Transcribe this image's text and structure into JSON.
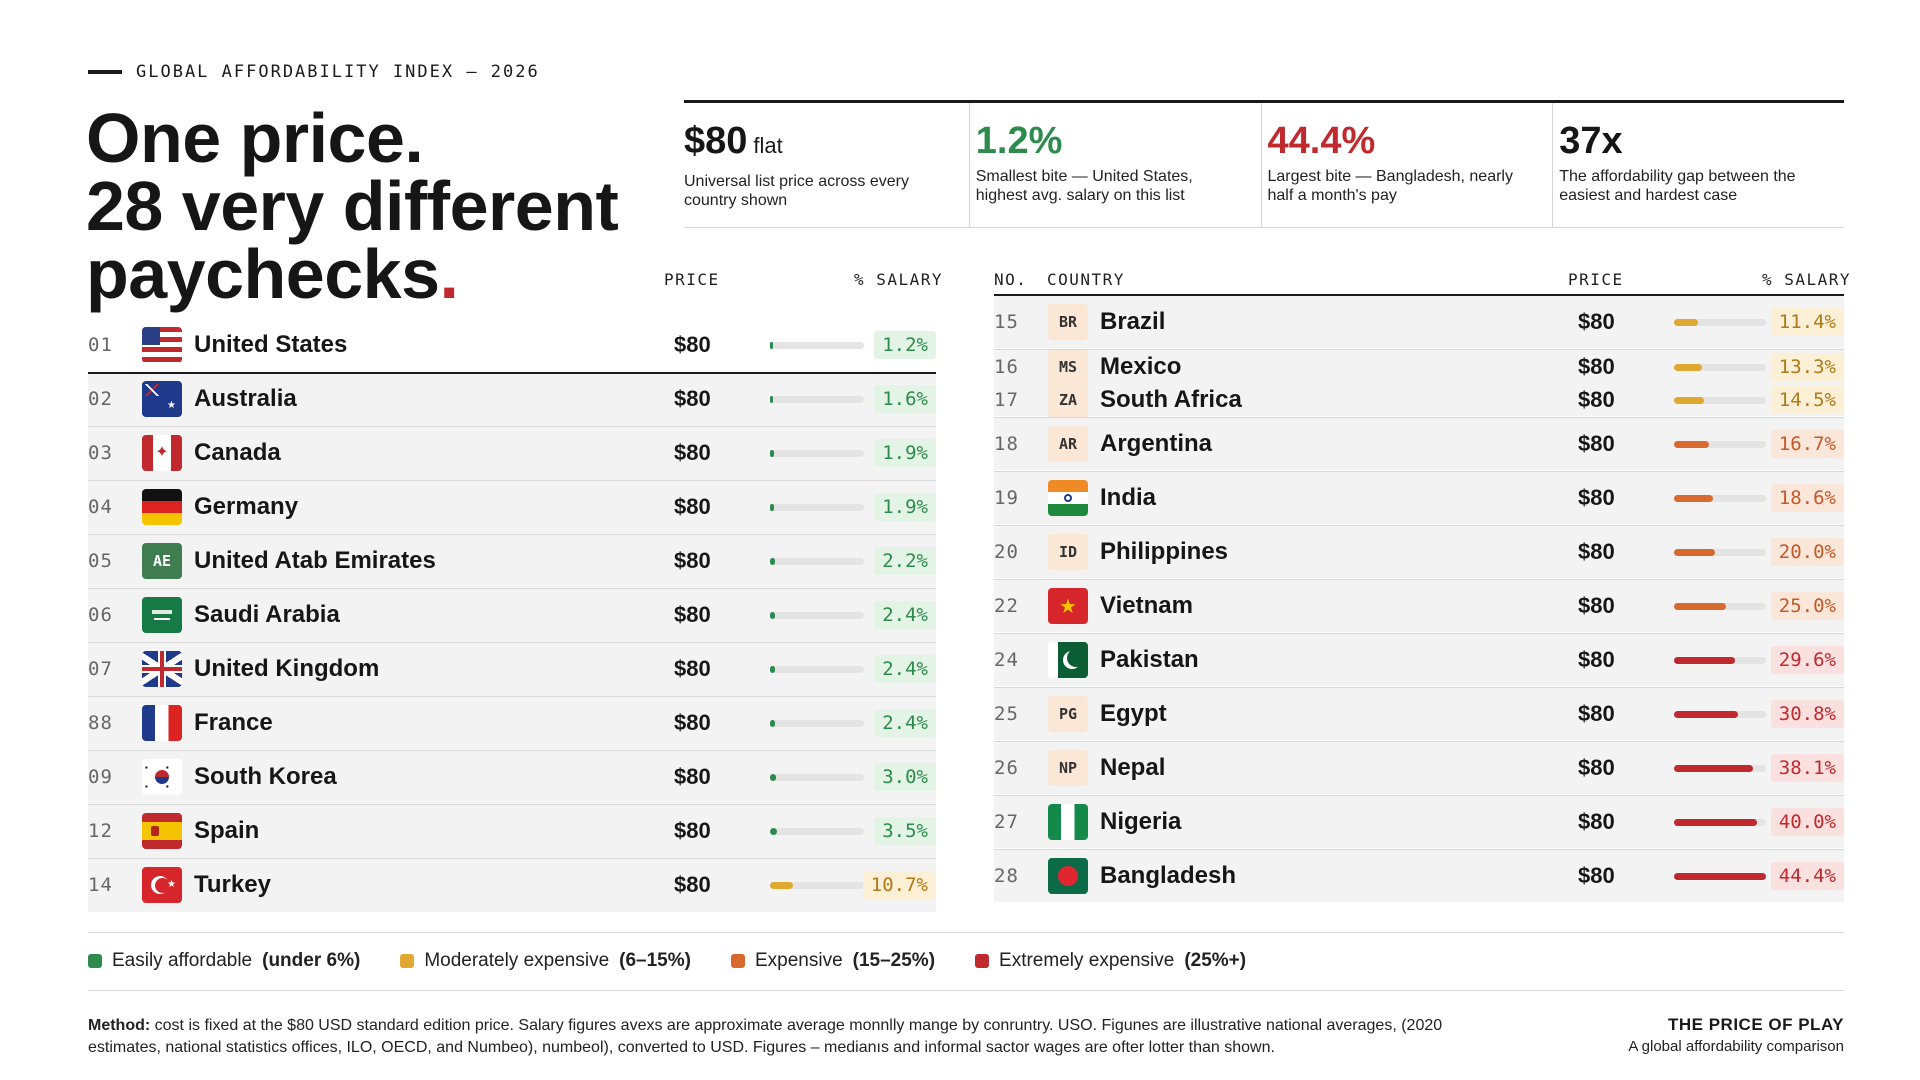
{
  "header": {
    "eyebrow": "GLOBAL AFFORDABILITY INDEX – 2026",
    "headline_line1": "One price.",
    "headline_line2": "28 very different",
    "headline_line3": "paychecks",
    "headline_dot": "."
  },
  "stats": [
    {
      "value": "$80",
      "unit": "flat",
      "desc": "Universal list price across every country shown",
      "color": "#161616"
    },
    {
      "value": "1.2%",
      "unit": "",
      "desc": "Smallest bite — United States, highest avg. salary on this list",
      "color": "#2e8b4e"
    },
    {
      "value": "44.4%",
      "unit": "",
      "desc": "Largest bite — Bangladesh, nearly half a month's pay",
      "color": "#c0292d"
    },
    {
      "value": "37x",
      "unit": "",
      "desc": "The affordability gap between the easiest and hardest case",
      "color": "#161616"
    }
  ],
  "columns": {
    "left_price": "PRICE",
    "left_salary": "% SALARY",
    "right_no": "NO.",
    "right_country": "COUNTRY",
    "right_price": "PRICE",
    "right_salary": "% SALARY"
  },
  "left_rows": [
    {
      "no": "01",
      "country": "United States",
      "price": "$80",
      "pct": "1.2%",
      "share": 1.2,
      "level": "green",
      "flag": "us-flag-icon",
      "code": ""
    },
    {
      "no": "02",
      "country": "Australia",
      "price": "$80",
      "pct": "1.6%",
      "share": 1.6,
      "level": "green",
      "flag": "au-flag-icon",
      "code": ""
    },
    {
      "no": "03",
      "country": "Canada",
      "price": "$80",
      "pct": "1.9%",
      "share": 1.9,
      "level": "green",
      "flag": "ca-flag-icon",
      "code": ""
    },
    {
      "no": "04",
      "country": "Germany",
      "price": "$80",
      "pct": "1.9%",
      "share": 1.9,
      "level": "green",
      "flag": "de-flag-icon",
      "code": ""
    },
    {
      "no": "05",
      "country": "United Atab Emirates",
      "price": "$80",
      "pct": "2.2%",
      "share": 2.2,
      "level": "green",
      "flag": "ae-flag-icon",
      "code": "AE"
    },
    {
      "no": "06",
      "country": "Saudi Arabia",
      "price": "$80",
      "pct": "2.4%",
      "share": 2.4,
      "level": "green",
      "flag": "sa-flag-icon",
      "code": ""
    },
    {
      "no": "07",
      "country": "United Kingdom",
      "price": "$80",
      "pct": "2.4%",
      "share": 2.4,
      "level": "green",
      "flag": "gb-flag-icon",
      "code": ""
    },
    {
      "no": "88",
      "country": "France",
      "price": "$80",
      "pct": "2.4%",
      "share": 2.4,
      "level": "green",
      "flag": "fr-flag-icon",
      "code": ""
    },
    {
      "no": "09",
      "country": "South Korea",
      "price": "$80",
      "pct": "3.0%",
      "share": 3.0,
      "level": "green",
      "flag": "kr-flag-icon",
      "code": ""
    },
    {
      "no": "12",
      "country": "Spain",
      "price": "$80",
      "pct": "3.5%",
      "share": 3.5,
      "level": "green",
      "flag": "es-flag-icon",
      "code": ""
    },
    {
      "no": "14",
      "country": "Turkey",
      "price": "$80",
      "pct": "10.7%",
      "share": 10.7,
      "level": "amber",
      "flag": "tr-flag-icon",
      "code": ""
    }
  ],
  "right_rows": [
    {
      "no": "15",
      "country": "Brazil",
      "price": "$80",
      "pct": "11.4%",
      "share": 11.4,
      "level": "amber",
      "flag": "br-code-icon",
      "code": "BR"
    },
    {
      "no": "16",
      "country": "Mexico",
      "price": "$80",
      "pct": "13.3%",
      "share": 13.3,
      "level": "amber",
      "flag": "mx-code-icon",
      "code": "MS"
    },
    {
      "no": "17",
      "country": "South Africa",
      "price": "$80",
      "pct": "14.5%",
      "share": 14.5,
      "level": "amber",
      "flag": "za-code-icon",
      "code": "ZA"
    },
    {
      "no": "18",
      "country": "Argentina",
      "price": "$80",
      "pct": "16.7%",
      "share": 16.7,
      "level": "orange",
      "flag": "ar-code-icon",
      "code": "AR"
    },
    {
      "no": "19",
      "country": "India",
      "price": "$80",
      "pct": "18.6%",
      "share": 18.6,
      "level": "orange",
      "flag": "in-flag-icon",
      "code": ""
    },
    {
      "no": "20",
      "country": "Philippines",
      "price": "$80",
      "pct": "20.0%",
      "share": 20.0,
      "level": "orange",
      "flag": "ph-code-icon",
      "code": "ID"
    },
    {
      "no": "22",
      "country": "Vietnam",
      "price": "$80",
      "pct": "25.0%",
      "share": 25.0,
      "level": "orange",
      "flag": "vn-flag-icon",
      "code": ""
    },
    {
      "no": "24",
      "country": "Pakistan",
      "price": "$80",
      "pct": "29.6%",
      "share": 29.6,
      "level": "red",
      "flag": "pk-flag-icon",
      "code": ""
    },
    {
      "no": "25",
      "country": "Egypt",
      "price": "$80",
      "pct": "30.8%",
      "share": 30.8,
      "level": "red",
      "flag": "eg-code-icon",
      "code": "PG"
    },
    {
      "no": "26",
      "country": "Nepal",
      "price": "$80",
      "pct": "38.1%",
      "share": 38.1,
      "level": "red",
      "flag": "np-code-icon",
      "code": "NP"
    },
    {
      "no": "27",
      "country": "Nigeria",
      "price": "$80",
      "pct": "40.0%",
      "share": 40.0,
      "level": "red",
      "flag": "ng-flag-icon",
      "code": ""
    },
    {
      "no": "28",
      "country": "Bangladesh",
      "price": "$80",
      "pct": "44.4%",
      "share": 44.4,
      "level": "red",
      "flag": "bd-flag-icon",
      "code": ""
    }
  ],
  "legend": [
    {
      "label": "Easily affordable",
      "range": "(under 6%)",
      "color": "#2e8b4e"
    },
    {
      "label": "Moderately expensive",
      "range": "(6–15%)",
      "color": "#e0a830"
    },
    {
      "label": "Expensive",
      "range": "(15–25%)",
      "color": "#d8692f"
    },
    {
      "label": "Extremely expensive",
      "range": "(25%+)",
      "color": "#c0292d"
    }
  ],
  "footer": {
    "method_label": "Method:",
    "method_text": "cost is fixed at the $80 USD standard edition price. Salary figures avexs are approximate average monnlly mange by conruntry. USO. Figunes are illustrative national averages, (2020 estimates, national statistics offices, ILO, OECD, and Numbeo), numbeol), converted to USD. Figures – medianıs and informal sactor wages are ofter lotter than shown.",
    "brand_title": "THE PRICE OF PLAY",
    "brand_sub": "A global affordability comparison"
  }
}
